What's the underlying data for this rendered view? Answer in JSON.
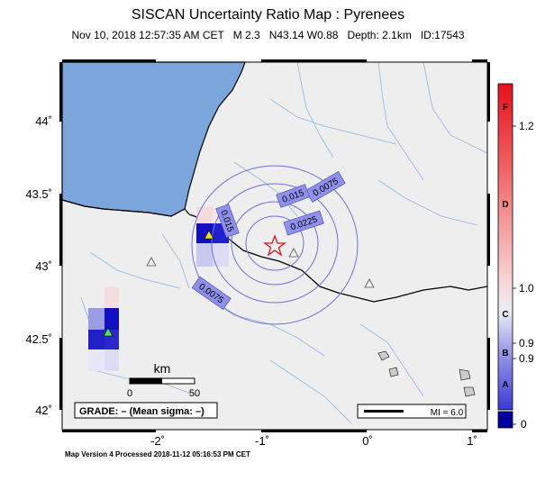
{
  "header": {
    "title": "SISCAN Uncertainty Ratio Map : Pyrenees",
    "date": "Nov 10, 2018 12:57:35 AM CET",
    "magnitude": "M 2.3",
    "location": "N43.14 W0.88",
    "depth": "Depth: 2.1km",
    "id": "ID:17543"
  },
  "axes": {
    "lat_labels": [
      "44˚",
      "43.5˚",
      "43˚",
      "42.5˚",
      "42˚"
    ],
    "lon_labels": [
      "-2˚",
      "-1˚",
      "0˚",
      "1˚"
    ]
  },
  "contours": [
    "0.0075",
    "0.015",
    "0.0225",
    "0.015",
    "0.0075"
  ],
  "scale": {
    "title": "km",
    "min": "0",
    "max": "50"
  },
  "grade_box": "GRADE: – (Mean sigma: –)",
  "mi_box": "MI = 6.0",
  "colorbar": {
    "letters": [
      "F",
      "D",
      "C",
      "B",
      "A"
    ],
    "values": [
      "1.2",
      "1.0",
      "0.9",
      "0.9",
      "0"
    ],
    "colors": {
      "high": "#e8101a",
      "mid": "#f7c4c4",
      "low": "#3a3ad8",
      "zero": "#0000a0"
    }
  },
  "colors": {
    "sea": "#7ba6dc",
    "land": "#eeeeee",
    "contour": "#6f6fdc",
    "star": "#e0101a"
  },
  "footer": "Map Version 4 Processed 2018-11-12 05:16:53 PM CET"
}
